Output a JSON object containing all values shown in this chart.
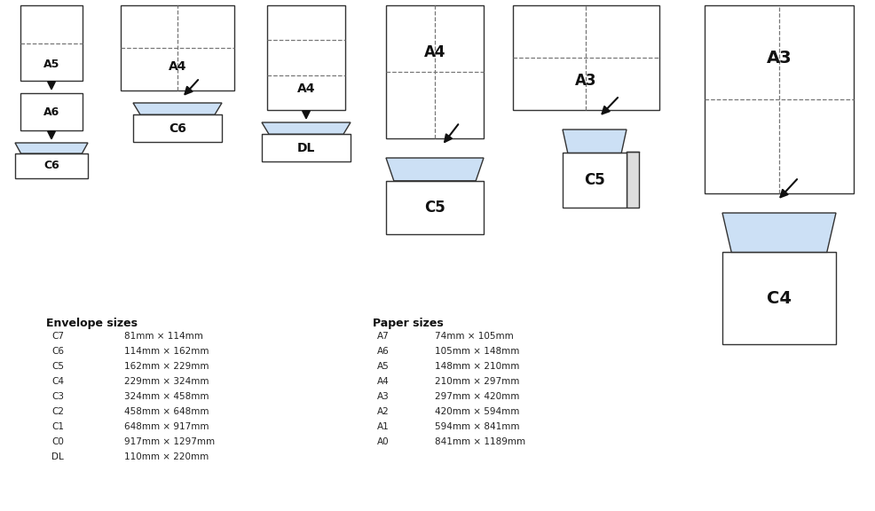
{
  "bg_color": "#ffffff",
  "envelope_fill": "#cce0f5",
  "envelope_edge": "#333333",
  "paper_color": "#ffffff",
  "paper_edge": "#333333",
  "dashed_color": "#777777",
  "arrow_color": "#111111",
  "envelope_sizes_title": "Envelope sizes",
  "paper_sizes_title": "Paper sizes",
  "envelope_sizes": [
    [
      "C7",
      "81mm × 114mm"
    ],
    [
      "C6",
      "114mm × 162mm"
    ],
    [
      "C5",
      "162mm × 229mm"
    ],
    [
      "C4",
      "229mm × 324mm"
    ],
    [
      "C3",
      "324mm × 458mm"
    ],
    [
      "C2",
      "458mm × 648mm"
    ],
    [
      "C1",
      "648mm × 917mm"
    ],
    [
      "C0",
      "917mm × 1297mm"
    ],
    [
      "DL",
      "110mm × 220mm"
    ]
  ],
  "paper_sizes": [
    [
      "A7",
      "74mm × 105mm"
    ],
    [
      "A6",
      "105mm × 148mm"
    ],
    [
      "A5",
      "148mm × 210mm"
    ],
    [
      "A4",
      "210mm × 297mm"
    ],
    [
      "A3",
      "297mm × 420mm"
    ],
    [
      "A2",
      "420mm × 594mm"
    ],
    [
      "A1",
      "594mm × 841mm"
    ],
    [
      "A0",
      "841mm × 1189mm"
    ]
  ]
}
